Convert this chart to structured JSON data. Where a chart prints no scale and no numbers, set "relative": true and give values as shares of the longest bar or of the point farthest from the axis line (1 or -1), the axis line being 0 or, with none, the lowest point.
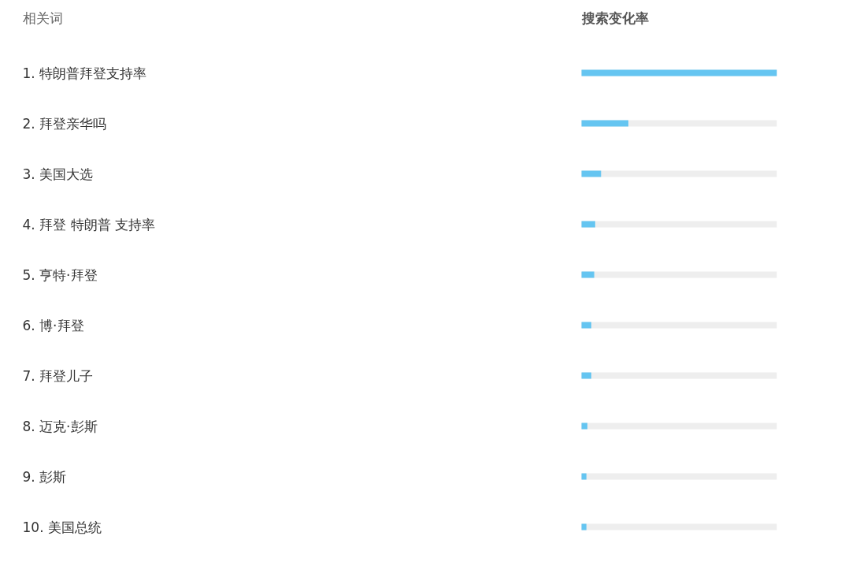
{
  "chart_data": {
    "type": "bar",
    "orientation": "horizontal",
    "relative": true,
    "ylabel": "相关词",
    "xlabel": "搜索变化率",
    "categories": [
      "1. 特朗普拜登支持率",
      "2. 拜登亲华吗",
      "3. 美国大选",
      "4. 拜登 特朗普 支持率",
      "5. 亨特·拜登",
      "6. 博·拜登",
      "7. 拜登儿子",
      "8. 迈克·彭斯",
      "9. 彭斯",
      "10. 美国总统"
    ],
    "values": [
      1,
      0.24,
      0.1,
      0.07,
      0.065,
      0.05,
      0.05,
      0.03,
      0.025,
      0.025
    ],
    "color": "#65c5f1"
  }
}
